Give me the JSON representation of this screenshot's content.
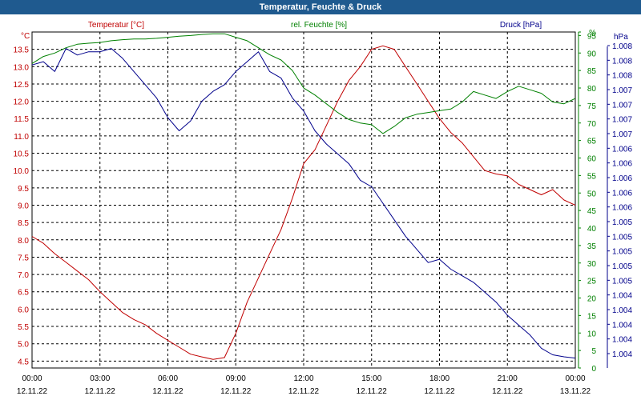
{
  "title": "Temperatur, Feuchte & Druck",
  "chart_data": {
    "type": "line",
    "title": "Temperatur, Feuchte & Druck",
    "x_labels": [
      {
        "time": "00:00",
        "date": "12.11.22"
      },
      {
        "time": "03:00",
        "date": "12.11.22"
      },
      {
        "time": "06:00",
        "date": "12.11.22"
      },
      {
        "time": "09:00",
        "date": "12.11.22"
      },
      {
        "time": "12:00",
        "date": "12.11.22"
      },
      {
        "time": "15:00",
        "date": "12.11.22"
      },
      {
        "time": "18:00",
        "date": "12.11.22"
      },
      {
        "time": "21:00",
        "date": "12.11.22"
      },
      {
        "time": "00:00",
        "date": "13.11.22"
      }
    ],
    "x_range_hours": [
      0,
      24
    ],
    "grid": true,
    "axes": {
      "temperature": {
        "label": "Temperatur [°C]",
        "unit": "°C",
        "color": "#c00000",
        "range": [
          4.3,
          14.0
        ],
        "side": "left",
        "ticks": [
          "4.5",
          "5.0",
          "5.5",
          "6.0",
          "6.5",
          "7.0",
          "7.5",
          "8.0",
          "8.5",
          "9.0",
          "9.5",
          "10.0",
          "10.5",
          "11.0",
          "11.5",
          "12.0",
          "12.5",
          "13.0",
          "13.5"
        ]
      },
      "humidity": {
        "label": "rel. Feuchte [%]",
        "unit": "%",
        "color": "#008000",
        "range": [
          0,
          96
        ],
        "side": "right",
        "ticks": [
          "0",
          "5",
          "10",
          "15",
          "20",
          "25",
          "30",
          "35",
          "40",
          "45",
          "50",
          "55",
          "60",
          "65",
          "70",
          "75",
          "80",
          "85",
          "90",
          "95",
          "%"
        ]
      },
      "pressure": {
        "label": "Druck [hPa]",
        "unit": "hPa",
        "color": "#00008b",
        "range": [
          1003.5,
          1008.6
        ],
        "side": "right",
        "ticks": [
          "1.004",
          "1.004",
          "1.004",
          "1.004",
          "1.004",
          "1.005",
          "1.005",
          "1.005",
          "1.005",
          "1.005",
          "1.006",
          "1.006",
          "1.006",
          "1.006",
          "1.006",
          "1.007",
          "1.007",
          "1.007",
          "1.007",
          "1.008",
          "1.008",
          "1.008"
        ]
      }
    },
    "series": [
      {
        "name": "Temperatur [°C]",
        "axis": "temperature",
        "color": "#c00000",
        "x": [
          0,
          0.5,
          1,
          1.5,
          2,
          2.5,
          3,
          3.5,
          4,
          4.5,
          5,
          5.5,
          6,
          6.5,
          7,
          7.5,
          8,
          8.5,
          9,
          9.5,
          10,
          10.5,
          11,
          11.5,
          12,
          12.5,
          13,
          13.5,
          14,
          14.5,
          15,
          15.5,
          16,
          16.5,
          17,
          17.5,
          18,
          18.5,
          19,
          19.5,
          20,
          20.5,
          21,
          21.5,
          22,
          22.5,
          23,
          23.5,
          24
        ],
        "values": [
          8.1,
          7.9,
          7.6,
          7.35,
          7.1,
          6.85,
          6.5,
          6.2,
          5.9,
          5.7,
          5.55,
          5.3,
          5.1,
          4.9,
          4.7,
          4.62,
          4.55,
          4.6,
          5.3,
          6.2,
          6.9,
          7.6,
          8.3,
          9.2,
          10.2,
          10.6,
          11.3,
          12.0,
          12.6,
          13.0,
          13.5,
          13.6,
          13.5,
          13.0,
          12.5,
          12.0,
          11.5,
          11.1,
          10.8,
          10.4,
          10.0,
          9.9,
          9.85,
          9.6,
          9.45,
          9.3,
          9.45,
          9.15,
          9.0
        ]
      },
      {
        "name": "rel. Feuchte [%]",
        "axis": "humidity",
        "color": "#008000",
        "x": [
          0,
          0.5,
          1,
          1.5,
          2,
          2.5,
          3,
          3.5,
          4,
          4.5,
          5,
          5.5,
          6,
          6.5,
          7,
          7.5,
          8,
          8.5,
          9,
          9.5,
          10,
          10.5,
          11,
          11.5,
          12,
          12.5,
          13,
          13.5,
          14,
          14.5,
          15,
          15.5,
          16,
          16.5,
          17,
          17.5,
          18,
          18.5,
          19,
          19.5,
          20,
          20.5,
          21,
          21.5,
          22,
          22.5,
          23,
          23.5,
          24
        ],
        "values": [
          87,
          89,
          90,
          91.5,
          92.5,
          92.8,
          93,
          93.5,
          93.8,
          94,
          94,
          94.2,
          94.5,
          94.8,
          95,
          95.3,
          95.5,
          95.5,
          94.5,
          93.5,
          91.5,
          89.5,
          88,
          85,
          80,
          78,
          75.5,
          73,
          71,
          70,
          69.5,
          67,
          69,
          71.5,
          72.5,
          73,
          73.5,
          74,
          76,
          79,
          78,
          77,
          79,
          80.5,
          79.5,
          78.5,
          76,
          75.5,
          77
        ]
      },
      {
        "name": "Druck [hPa]",
        "axis": "pressure",
        "color": "#00008b",
        "x": [
          0,
          0.5,
          1,
          1.5,
          2,
          2.5,
          3,
          3.5,
          4,
          4.5,
          5,
          5.5,
          6,
          6.5,
          7,
          7.5,
          8,
          8.5,
          9,
          9.5,
          10,
          10.5,
          11,
          11.5,
          12,
          12.5,
          13,
          13.5,
          14,
          14.5,
          15,
          15.5,
          16,
          16.5,
          17,
          17.5,
          18,
          18.5,
          19,
          19.5,
          20,
          20.5,
          21,
          21.5,
          22,
          22.5,
          23,
          23.5,
          24
        ],
        "values": [
          1008.1,
          1008.15,
          1008.0,
          1008.35,
          1008.25,
          1008.3,
          1008.3,
          1008.35,
          1008.2,
          1008.0,
          1007.8,
          1007.6,
          1007.3,
          1007.1,
          1007.25,
          1007.55,
          1007.7,
          1007.8,
          1008.0,
          1008.15,
          1008.3,
          1008.0,
          1007.9,
          1007.6,
          1007.4,
          1007.1,
          1006.9,
          1006.75,
          1006.6,
          1006.35,
          1006.25,
          1006.0,
          1005.75,
          1005.5,
          1005.3,
          1005.1,
          1005.15,
          1005.0,
          1004.9,
          1004.8,
          1004.65,
          1004.5,
          1004.3,
          1004.15,
          1004.0,
          1003.8,
          1003.7,
          1003.67,
          1003.65
        ]
      }
    ]
  }
}
